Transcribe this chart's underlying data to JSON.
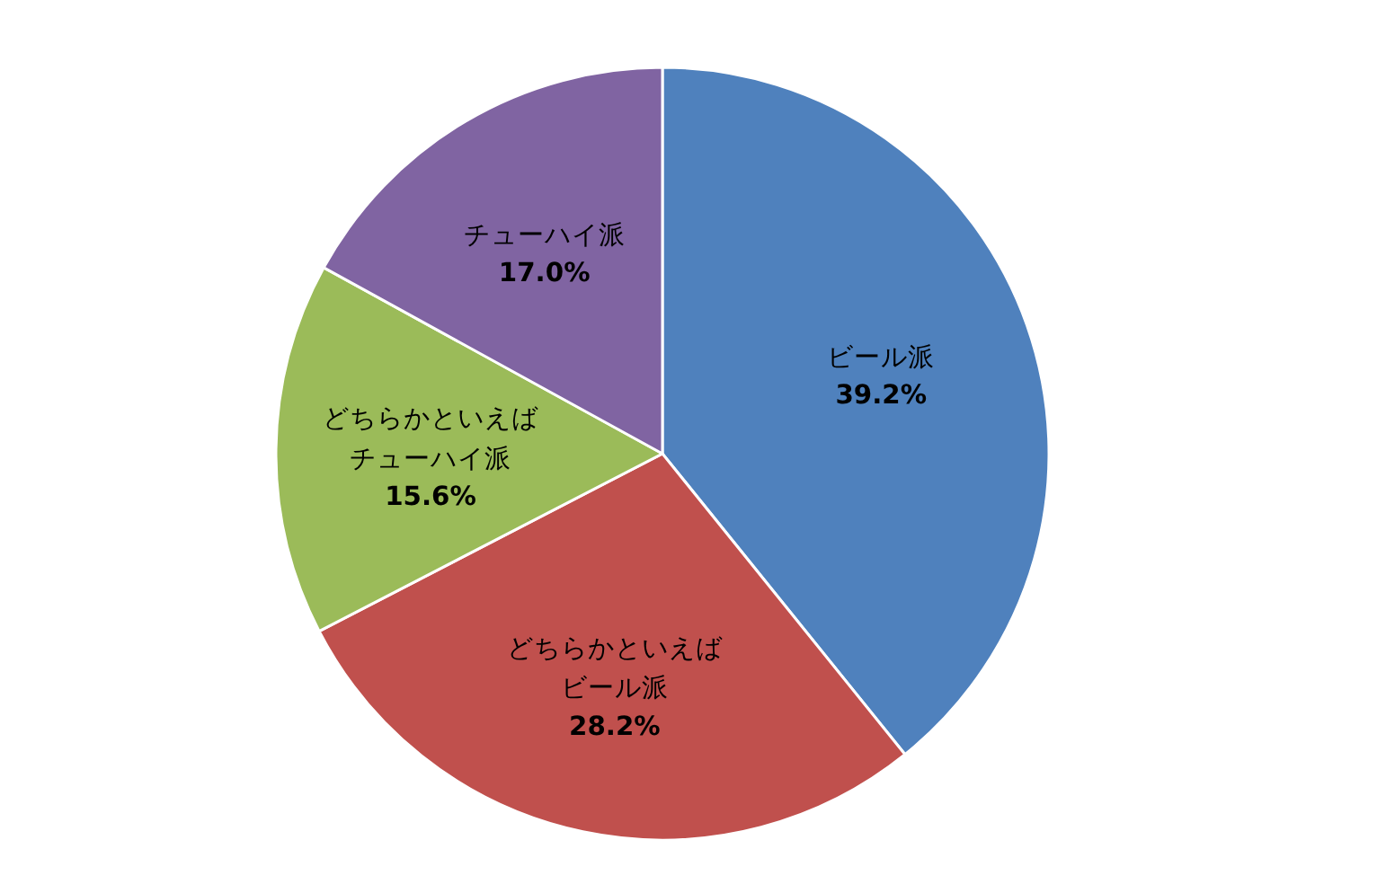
{
  "chart_data": {
    "type": "pie",
    "categories": [
      "ビール派",
      "どちらかといえばビール派",
      "どちらかといえばチューハイ派",
      "チューハイ派"
    ],
    "values": [
      39.2,
      28.2,
      15.6,
      17.0
    ],
    "value_labels": [
      "39.2%",
      "28.2%",
      "15.6%",
      "17.0%"
    ],
    "colors": [
      "#4f81bd",
      "#c0504d",
      "#9bbb59",
      "#8064a2"
    ]
  }
}
